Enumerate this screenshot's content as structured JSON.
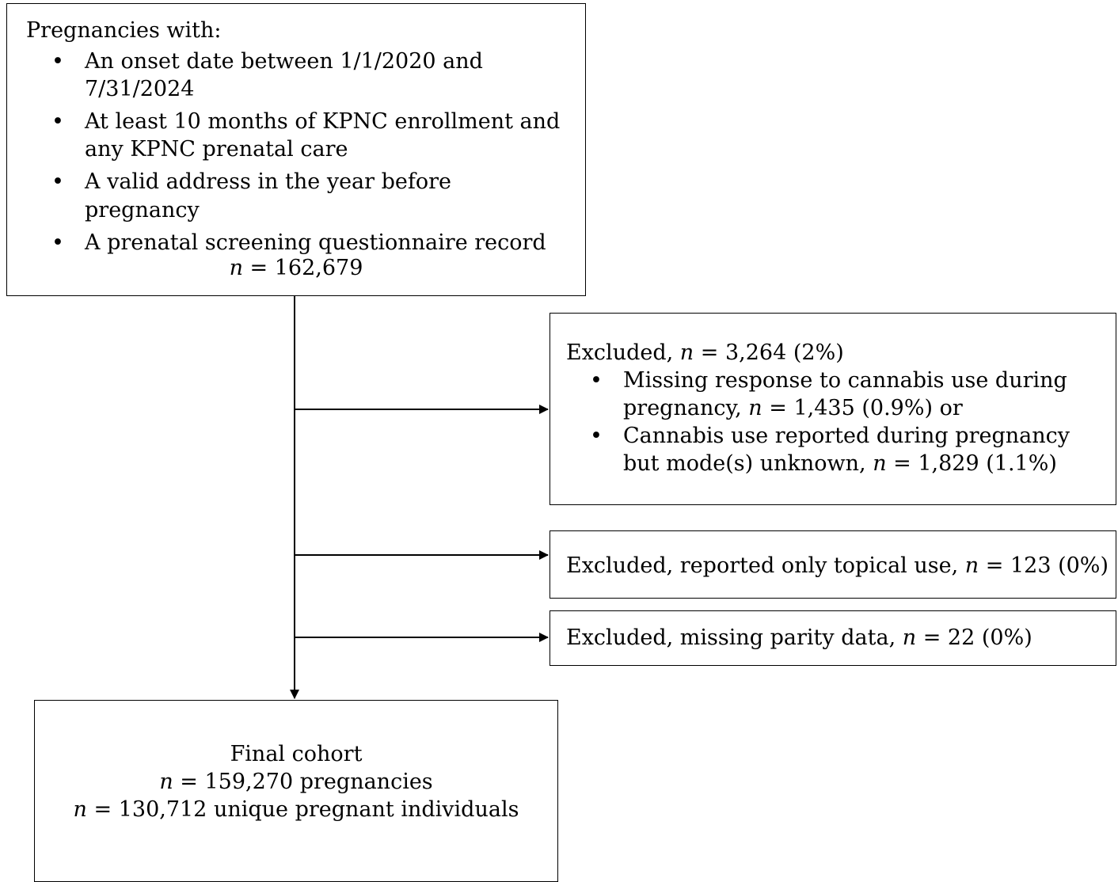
{
  "inclusion": {
    "heading": "Pregnancies with:",
    "criteria": [
      "An onset date between 1/1/2020 and 7/31/2024",
      "At least 10 months of KPNC enrollment and any KPNC prenatal care",
      "A valid address in the year before pregnancy",
      "A prenatal screening questionnaire record"
    ],
    "n_symbol": "n",
    "n_value": " = 162,679"
  },
  "exclusion_1": {
    "prefix": "Excluded, ",
    "n_symbol": "n",
    "n_value": " = 3,264 (2%)",
    "items": [
      {
        "text": "Missing response to cannabis use during pregnancy, ",
        "n_symbol": "n",
        "n_value": " = 1,435 (0.9%) or"
      },
      {
        "text": "Cannabis use reported during pregnancy but mode(s) unknown, ",
        "n_symbol": "n",
        "n_value": " = 1,829 (1.1%)"
      }
    ]
  },
  "exclusion_2": {
    "text": "Excluded, reported only topical use, ",
    "n_symbol": "n",
    "n_value": " = 123 (0%)"
  },
  "exclusion_3": {
    "text": "Excluded, missing parity data, ",
    "n_symbol": "n",
    "n_value": " = 22 (0%)"
  },
  "final": {
    "title": "Final cohort",
    "lines": [
      {
        "n_symbol": "n",
        "n_value": " = 159,270 pregnancies"
      },
      {
        "n_symbol": "n",
        "n_value": " = 130,712 unique pregnant individuals"
      }
    ]
  }
}
